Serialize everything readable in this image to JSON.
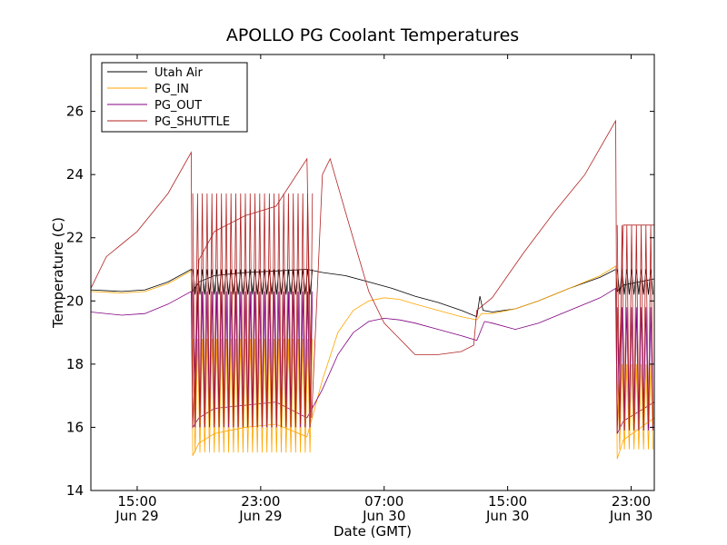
{
  "chart_data": {
    "type": "line",
    "title": "APOLLO PG Coolant Temperatures",
    "xlabel": "Date (GMT)",
    "ylabel": "Temperature (C)",
    "x_unit": "hours since Jun 29 00:00 GMT",
    "xlim": [
      12.0,
      48.5
    ],
    "ylim": [
      14,
      27.8
    ],
    "grid": false,
    "legend_position": "top-left",
    "y_ticks": [
      14,
      16,
      18,
      20,
      22,
      24,
      26
    ],
    "x_ticks": [
      {
        "x": 15,
        "time": "15:00",
        "day": "Jun 29"
      },
      {
        "x": 23,
        "time": "23:00",
        "day": "Jun 29"
      },
      {
        "x": 31,
        "time": "07:00",
        "day": "Jun 30"
      },
      {
        "x": 39,
        "time": "15:00",
        "day": "Jun 30"
      },
      {
        "x": 47,
        "time": "23:00",
        "day": "Jun 30"
      }
    ],
    "series": [
      {
        "name": "Utah Air",
        "color": "#000000",
        "points": [
          [
            12.0,
            20.35
          ],
          [
            14.0,
            20.3
          ],
          [
            15.5,
            20.35
          ],
          [
            17.0,
            20.6
          ],
          [
            18.5,
            21.0
          ],
          [
            18.6,
            20.3
          ],
          [
            19.0,
            20.6
          ],
          [
            20.0,
            20.8
          ],
          [
            22.0,
            20.9
          ],
          [
            24.0,
            20.95
          ],
          [
            26.0,
            21.0
          ],
          [
            27.0,
            20.9
          ],
          [
            28.5,
            20.8
          ],
          [
            30.0,
            20.6
          ],
          [
            31.5,
            20.4
          ],
          [
            33.0,
            20.15
          ],
          [
            34.5,
            19.95
          ],
          [
            36.0,
            19.7
          ],
          [
            37.0,
            19.5
          ],
          [
            37.2,
            20.15
          ],
          [
            37.4,
            19.7
          ],
          [
            38.0,
            19.65
          ],
          [
            39.5,
            19.75
          ],
          [
            41.0,
            20.0
          ],
          [
            43.0,
            20.4
          ],
          [
            45.0,
            20.75
          ],
          [
            46.0,
            21.0
          ],
          [
            46.1,
            20.3
          ],
          [
            46.5,
            20.5
          ],
          [
            48.5,
            20.7
          ]
        ]
      },
      {
        "name": "PG_IN",
        "color": "#ffa500",
        "points": [
          [
            12.0,
            20.3
          ],
          [
            14.0,
            20.25
          ],
          [
            15.5,
            20.3
          ],
          [
            17.0,
            20.55
          ],
          [
            18.5,
            20.95
          ],
          [
            18.6,
            15.1
          ],
          [
            19.0,
            15.5
          ],
          [
            20.0,
            15.8
          ],
          [
            22.0,
            16.0
          ],
          [
            24.0,
            16.1
          ],
          [
            26.0,
            15.7
          ],
          [
            27.0,
            17.5
          ],
          [
            28.0,
            19.0
          ],
          [
            29.0,
            19.7
          ],
          [
            30.0,
            20.0
          ],
          [
            31.0,
            20.1
          ],
          [
            32.0,
            20.05
          ],
          [
            33.0,
            19.9
          ],
          [
            34.5,
            19.7
          ],
          [
            36.0,
            19.5
          ],
          [
            37.0,
            19.4
          ],
          [
            37.3,
            19.6
          ],
          [
            38.0,
            19.6
          ],
          [
            39.5,
            19.75
          ],
          [
            41.0,
            20.0
          ],
          [
            43.0,
            20.4
          ],
          [
            45.0,
            20.8
          ],
          [
            46.0,
            21.1
          ],
          [
            46.1,
            15.0
          ],
          [
            46.5,
            15.6
          ],
          [
            48.5,
            16.3
          ]
        ]
      },
      {
        "name": "PG_OUT",
        "color": "#800080",
        "points": [
          [
            12.0,
            19.65
          ],
          [
            14.0,
            19.55
          ],
          [
            15.5,
            19.6
          ],
          [
            17.0,
            19.9
          ],
          [
            18.5,
            20.3
          ],
          [
            18.6,
            16.0
          ],
          [
            19.0,
            16.3
          ],
          [
            20.0,
            16.6
          ],
          [
            22.0,
            16.7
          ],
          [
            24.0,
            16.8
          ],
          [
            26.0,
            16.3
          ],
          [
            27.0,
            17.2
          ],
          [
            28.0,
            18.3
          ],
          [
            29.0,
            19.0
          ],
          [
            30.0,
            19.35
          ],
          [
            31.0,
            19.45
          ],
          [
            32.0,
            19.4
          ],
          [
            33.0,
            19.3
          ],
          [
            34.5,
            19.1
          ],
          [
            36.0,
            18.9
          ],
          [
            37.0,
            18.75
          ],
          [
            37.5,
            19.35
          ],
          [
            38.0,
            19.3
          ],
          [
            39.5,
            19.1
          ],
          [
            41.0,
            19.3
          ],
          [
            43.0,
            19.7
          ],
          [
            45.0,
            20.1
          ],
          [
            46.0,
            20.4
          ],
          [
            46.1,
            15.8
          ],
          [
            46.5,
            16.2
          ],
          [
            48.5,
            16.8
          ]
        ]
      },
      {
        "name": "PG_SHUTTLE",
        "color": "#b22222",
        "points": [
          [
            12.0,
            20.4
          ],
          [
            13.0,
            21.4
          ],
          [
            15.0,
            22.2
          ],
          [
            17.0,
            23.4
          ],
          [
            18.5,
            24.7
          ],
          [
            18.6,
            16.0
          ],
          [
            19.0,
            21.3
          ],
          [
            20.0,
            22.2
          ],
          [
            22.0,
            22.7
          ],
          [
            24.0,
            23.0
          ],
          [
            26.0,
            24.5
          ],
          [
            26.3,
            16.3
          ],
          [
            27.0,
            24.0
          ],
          [
            27.5,
            24.5
          ],
          [
            28.5,
            22.8
          ],
          [
            30.0,
            20.3
          ],
          [
            31.0,
            19.3
          ],
          [
            32.0,
            18.8
          ],
          [
            33.0,
            18.3
          ],
          [
            34.5,
            18.3
          ],
          [
            36.0,
            18.4
          ],
          [
            36.8,
            18.6
          ],
          [
            37.0,
            19.7
          ],
          [
            38.0,
            20.1
          ],
          [
            40.0,
            21.5
          ],
          [
            42.0,
            22.8
          ],
          [
            44.0,
            24.0
          ],
          [
            46.0,
            25.7
          ],
          [
            46.1,
            15.8
          ],
          [
            46.5,
            22.4
          ],
          [
            48.5,
            22.4
          ]
        ]
      }
    ],
    "oscillation_bands": [
      {
        "series": "Utah Air",
        "x_start": 18.6,
        "x_end": 26.4,
        "period": 0.31,
        "low": 20.2,
        "high": 21.0
      },
      {
        "series": "PG_IN",
        "x_start": 18.6,
        "x_end": 26.4,
        "period": 0.31,
        "low": 15.2,
        "high": 18.8
      },
      {
        "series": "PG_OUT",
        "x_start": 18.6,
        "x_end": 26.4,
        "period": 0.31,
        "low": 16.0,
        "high": 20.3
      },
      {
        "series": "PG_SHUTTLE",
        "x_start": 18.6,
        "x_end": 26.4,
        "period": 0.31,
        "low": 16.1,
        "high": 23.4
      },
      {
        "series": "Utah Air",
        "x_start": 46.1,
        "x_end": 48.5,
        "period": 0.31,
        "low": 20.2,
        "high": 21.0
      },
      {
        "series": "PG_IN",
        "x_start": 46.1,
        "x_end": 48.5,
        "period": 0.31,
        "low": 15.3,
        "high": 18.0
      },
      {
        "series": "PG_OUT",
        "x_start": 46.1,
        "x_end": 48.5,
        "period": 0.31,
        "low": 15.9,
        "high": 19.8
      },
      {
        "series": "PG_SHUTTLE",
        "x_start": 46.1,
        "x_end": 48.5,
        "period": 0.31,
        "low": 16.1,
        "high": 22.4
      }
    ]
  }
}
